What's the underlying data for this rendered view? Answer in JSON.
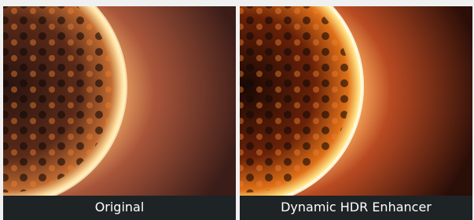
{
  "panels": [
    {
      "label": "Original"
    },
    {
      "label": "Dynamic HDR Enhancer"
    }
  ]
}
